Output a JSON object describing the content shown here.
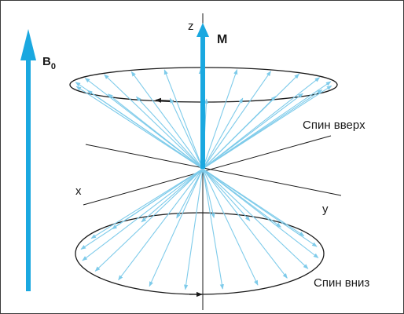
{
  "labels": {
    "field": "B",
    "field_subscript": "0",
    "magnetization": "M",
    "axis_z": "z",
    "axis_x": "x",
    "axis_y": "y",
    "spin_up": "Спин вверх",
    "spin_down": "Спин вниз"
  },
  "colors": {
    "accent": "#1aa8e0",
    "vector": "#7ecbea",
    "line": "#1a1a1a"
  },
  "icons": {
    "field_arrow": "arrow-up-icon",
    "magnetization_arrow": "arrow-up-icon"
  }
}
